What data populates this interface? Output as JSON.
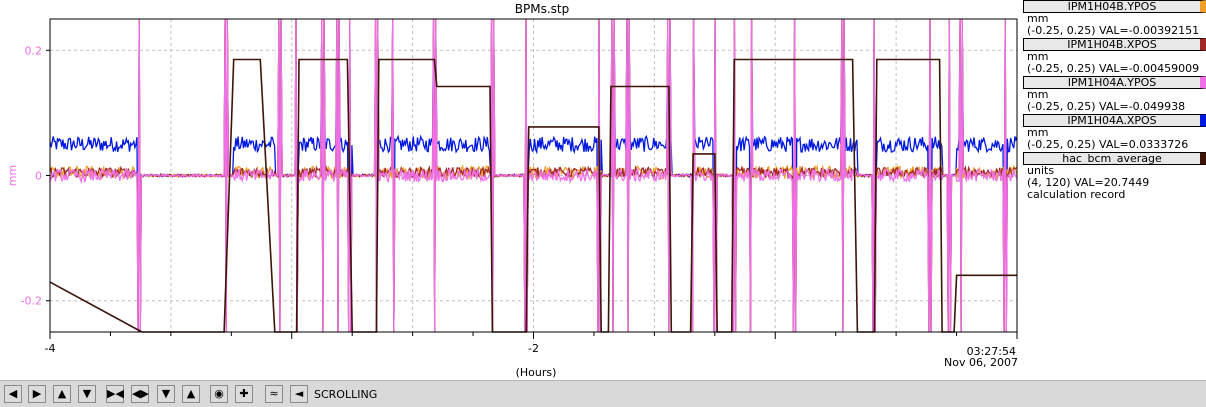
{
  "chart_data": {
    "type": "line",
    "title": "BPMs.stp",
    "xlabel": "(Hours)",
    "ylabel": "mm",
    "xlim": [
      -4,
      0
    ],
    "ylim": [
      -0.25,
      0.25
    ],
    "x_ticks": [
      "-4",
      "-2"
    ],
    "y_ticks": [
      "0.2",
      "0",
      "-0.2"
    ],
    "timestamp_time": "03:27:54",
    "timestamp_date": "Nov 06, 2007",
    "grid": true,
    "legend_position": "right",
    "series": [
      {
        "name": "IPM1H04B.YPOS",
        "unit": "mm",
        "range": "(-0.25, 0.25) VAL=-0.00392151",
        "color": "#f0a028"
      },
      {
        "name": "IPM1H04B.XPOS",
        "unit": "mm",
        "range": "(-0.25, 0.25) VAL=-0.00459009",
        "color": "#a02828"
      },
      {
        "name": "IPM1H04A.YPOS",
        "unit": "mm",
        "range": "(-0.25, 0.25) VAL=-0.049938",
        "color": "#f070e8"
      },
      {
        "name": "IPM1H04A.XPOS",
        "unit": "mm",
        "range": "(-0.25, 0.25) VAL=0.0333726",
        "color": "#0018e0"
      },
      {
        "name": "hac_bcm_average",
        "unit": "units",
        "range": "(4, 120) VAL=20.7449",
        "extra": "calculation record",
        "color": "#3c1408"
      }
    ],
    "current_steps": [
      [
        -4.0,
        22.5
      ],
      [
        -3.62,
        4
      ],
      [
        -3.28,
        4
      ],
      [
        -3.24,
        105
      ],
      [
        -3.13,
        105
      ],
      [
        -3.07,
        4
      ],
      [
        -2.98,
        4
      ],
      [
        -2.97,
        105
      ],
      [
        -2.77,
        105
      ],
      [
        -2.75,
        4
      ],
      [
        -2.65,
        4
      ],
      [
        -2.64,
        105
      ],
      [
        -2.41,
        105
      ],
      [
        -2.4,
        95
      ],
      [
        -2.18,
        95
      ],
      [
        -2.17,
        4
      ],
      [
        -2.03,
        4
      ],
      [
        -2.02,
        80
      ],
      [
        -1.73,
        80
      ],
      [
        -1.72,
        4
      ],
      [
        -1.69,
        4
      ],
      [
        -1.68,
        95
      ],
      [
        -1.44,
        95
      ],
      [
        -1.43,
        4
      ],
      [
        -1.35,
        4
      ],
      [
        -1.34,
        70
      ],
      [
        -1.25,
        70
      ],
      [
        -1.24,
        4
      ],
      [
        -1.18,
        4
      ],
      [
        -1.17,
        105
      ],
      [
        -0.68,
        105
      ],
      [
        -0.66,
        4
      ],
      [
        -0.59,
        4
      ],
      [
        -0.58,
        105
      ],
      [
        -0.32,
        105
      ],
      [
        -0.31,
        4
      ],
      [
        -0.26,
        4
      ],
      [
        -0.25,
        25
      ],
      [
        0.0,
        25
      ]
    ],
    "beam_on_intervals": [
      [
        -4.0,
        -3.63
      ],
      [
        -3.24,
        -3.07
      ],
      [
        -2.97,
        -2.75
      ],
      [
        -2.64,
        -2.18
      ],
      [
        -2.02,
        -1.72
      ],
      [
        -1.68,
        -1.43
      ],
      [
        -1.34,
        -1.25
      ],
      [
        -1.17,
        -0.66
      ],
      [
        -0.58,
        -0.31
      ],
      [
        -0.25,
        0.0
      ]
    ],
    "spike_times": [
      -3.63,
      -3.27,
      -3.05,
      -2.98,
      -2.87,
      -2.81,
      -2.76,
      -2.65,
      -2.58,
      -2.41,
      -2.17,
      -2.03,
      -1.73,
      -1.67,
      -1.61,
      -1.44,
      -1.34,
      -1.25,
      -1.17,
      -1.1,
      -0.92,
      -0.72,
      -0.59,
      -0.36,
      -0.28,
      -0.23,
      -0.05
    ]
  },
  "toolbar": {
    "scroll_label": "SCROLLING",
    "buttons": [
      "arrow-left-icon",
      "arrow-right-icon",
      "arrow-up-icon",
      "arrow-down-icon",
      "zoom-in-x-icon",
      "zoom-out-x-icon",
      "zoom-in-y-icon",
      "zoom-out-y-icon",
      "record-icon",
      "crosshair-icon",
      "overlay-icon",
      "back-to-live-icon"
    ]
  }
}
